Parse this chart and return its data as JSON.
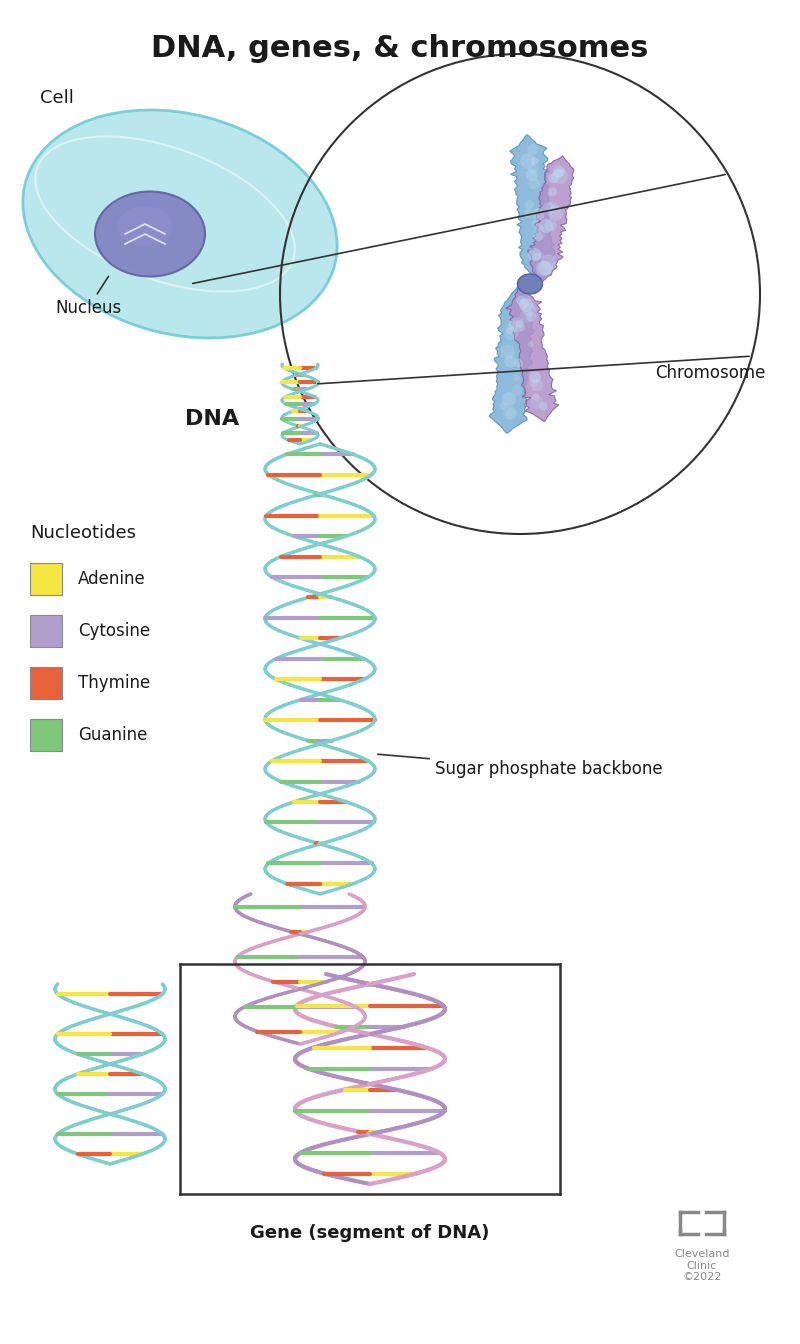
{
  "title": "DNA, genes, & chromosomes",
  "title_fontsize": 22,
  "title_fontweight": "bold",
  "background_color": "#ffffff",
  "labels": {
    "cell": "Cell",
    "nucleus": "Nucleus",
    "dna": "DNA",
    "chromosome": "Chromosome",
    "nucleotides": "Nucleotides",
    "adenine": "Adenine",
    "cytosine": "Cytosine",
    "thymine": "Thymine",
    "guanine": "Guanine",
    "sugar_phosphate": "Sugar phosphate backbone",
    "gene": "Gene (segment of DNA)",
    "cleveland": "Cleveland\nClinic\n©2022"
  },
  "colors": {
    "adenine": "#f5e642",
    "cytosine": "#b09fcc",
    "thymine": "#e8613a",
    "guanine": "#7dc87a",
    "dna_strand1": "#7ecece",
    "dna_strand_pink": "#d9a0c8",
    "dna_strand_purple": "#b090c0",
    "cell_fill": "#aee3e8",
    "cell_edge": "#6ac8d5",
    "nucleus_fill": "#8080c0",
    "nucleus_edge": "#6060a0",
    "chromosome_blue": "#7ab0d5",
    "chromosome_purple": "#b090c8",
    "text_color": "#1a1a1a",
    "line_color": "#333333"
  }
}
